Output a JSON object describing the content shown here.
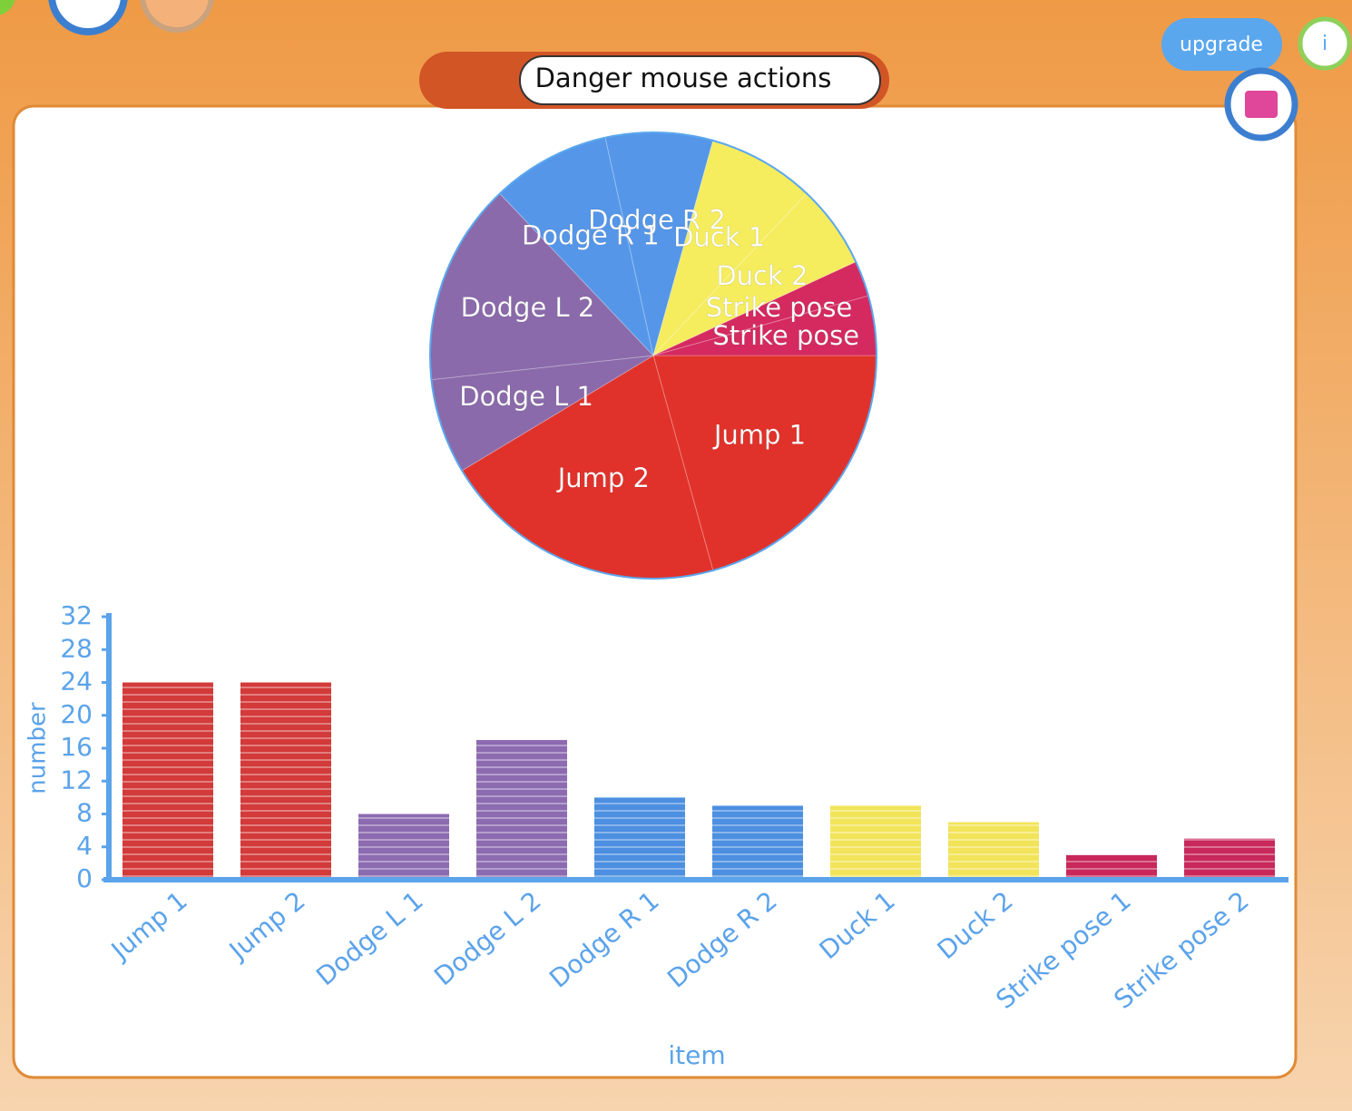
{
  "header": {
    "title": "Danger mouse actions"
  },
  "buttons": {
    "upgrade": "upgrade",
    "info": "i"
  },
  "chart_data": [
    {
      "type": "pie",
      "categories": [
        "Jump 1",
        "Jump 2",
        "Dodge L 1",
        "Dodge L 2",
        "Dodge R 1",
        "Dodge R 2",
        "Duck 1",
        "Duck 2",
        "Strike pose",
        "Strike pose"
      ],
      "values": [
        24,
        24,
        8,
        17,
        10,
        9,
        9,
        7,
        3,
        5
      ],
      "colors": [
        "#e0322b",
        "#e0322b",
        "#8a6aaa",
        "#8a6aaa",
        "#5596e8",
        "#5596e8",
        "#f5ec5e",
        "#f5ec5e",
        "#d42a60",
        "#d42a60"
      ]
    },
    {
      "type": "bar",
      "categories": [
        "Jump 1",
        "Jump 2",
        "Dodge L 1",
        "Dodge L 2",
        "Dodge R 1",
        "Dodge R 2",
        "Duck 1",
        "Duck 2",
        "Strike pose 1",
        "Strike pose 2"
      ],
      "values": [
        24,
        24,
        8,
        17,
        10,
        9,
        9,
        7,
        3,
        5
      ],
      "colors": [
        "#d33a3a",
        "#d33a3a",
        "#8c6bb0",
        "#8c6bb0",
        "#4d8fe0",
        "#4d8fe0",
        "#f2e45a",
        "#f2e45a",
        "#c8285a",
        "#c8285a"
      ],
      "ylabel": "number",
      "xlabel": "item",
      "ylim": [
        0,
        32
      ],
      "yticks": [
        0,
        4,
        8,
        12,
        16,
        20,
        24,
        28,
        32
      ]
    }
  ]
}
